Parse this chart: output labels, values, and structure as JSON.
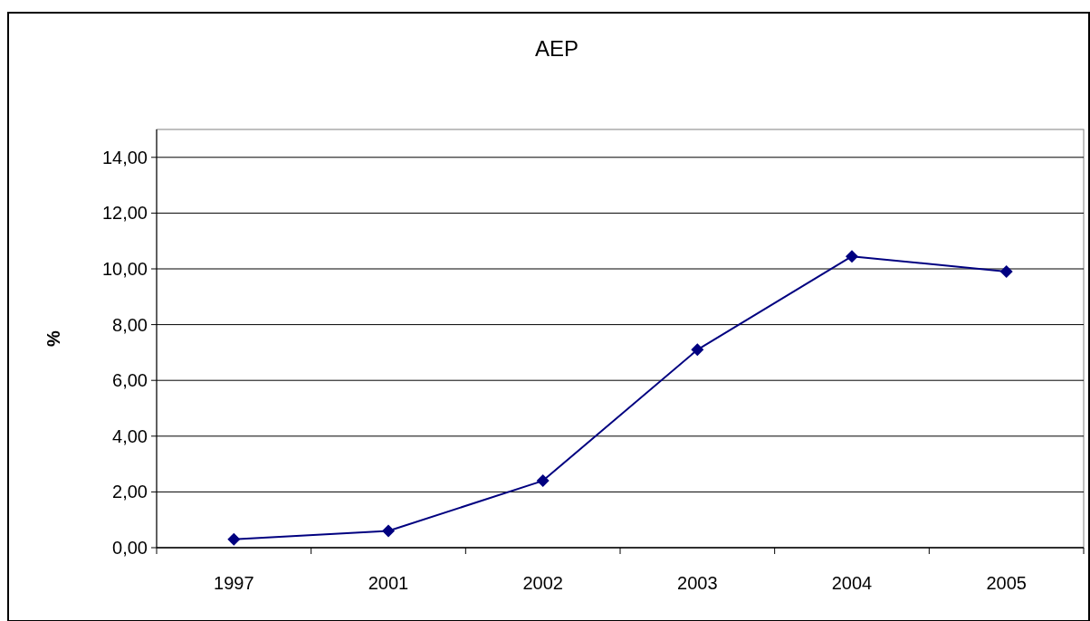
{
  "chart_data": {
    "type": "line",
    "title": "AEP",
    "ylabel": "%",
    "categories": [
      "1997",
      "2001",
      "2002",
      "2003",
      "2004",
      "2005"
    ],
    "series": [
      {
        "color": "#000080",
        "values": [
          0.3,
          0.6,
          2.4,
          7.1,
          10.45,
          9.9
        ]
      }
    ],
    "ylim": [
      0,
      15
    ],
    "yticks": [
      {
        "value": 0,
        "label": "0,00"
      },
      {
        "value": 2,
        "label": "2,00"
      },
      {
        "value": 4,
        "label": "4,00"
      },
      {
        "value": 6,
        "label": "6,00"
      },
      {
        "value": 8,
        "label": "8,00"
      },
      {
        "value": 10,
        "label": "10,00"
      },
      {
        "value": 12,
        "label": "12,00"
      },
      {
        "value": 14,
        "label": "14,00"
      }
    ],
    "grid": "y",
    "marker": "diamond",
    "line_style": "solid"
  }
}
